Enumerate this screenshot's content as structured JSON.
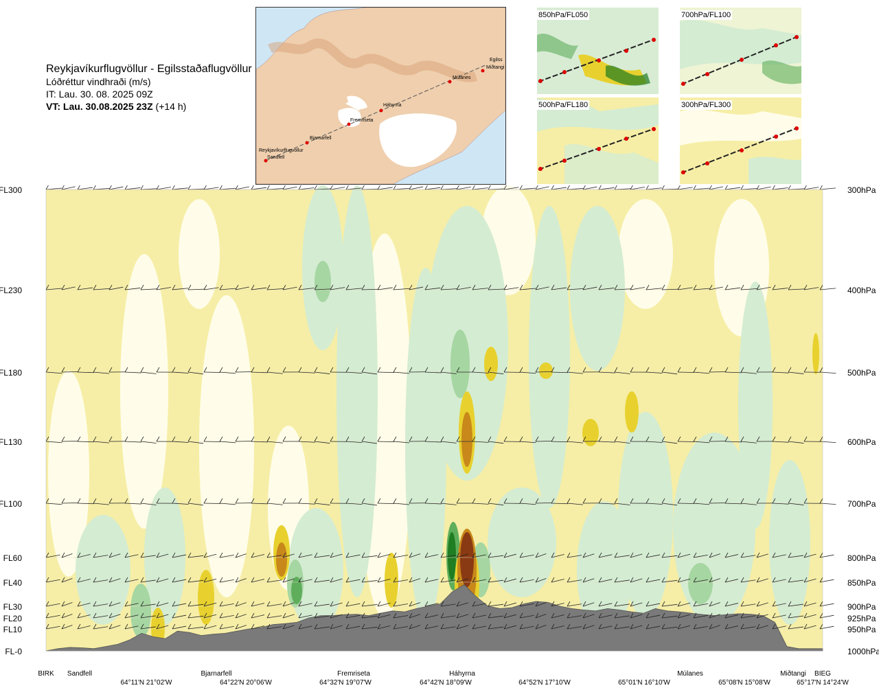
{
  "header": {
    "title": "Reykjavíkurflugvöllur - Egilsstaðaflugvöllur",
    "subtitle": "Lóðréttur vindhraði (m/s)",
    "init_time": "IT: Lau. 30. 08. 2025 09Z",
    "valid_time_bold": "VT: Lau. 30.08.2025 23Z",
    "valid_time_offset": "(+14 h)"
  },
  "route_map": {
    "waypoints": [
      "Reykjavíkurflugvöllur",
      "Sandfell",
      "Bjarnarfell",
      "Fremriseta",
      "Háhyrna",
      "Múlanes",
      "Miðtangi",
      "Egilss"
    ]
  },
  "insets": [
    {
      "label": "850hPa/FL050"
    },
    {
      "label": "700hPa/FL100"
    },
    {
      "label": "500hPa/FL180"
    },
    {
      "label": "300hPa/FL300"
    }
  ],
  "chart_data": {
    "type": "heatmap",
    "title": "Lóðréttur vindhraði (m/s)",
    "levels": [
      {
        "fl": "FL300",
        "hpa": "300hPa"
      },
      {
        "fl": "FL230",
        "hpa": "400hPa"
      },
      {
        "fl": "FL180",
        "hpa": "500hPa"
      },
      {
        "fl": "FL130",
        "hpa": "600hPa"
      },
      {
        "fl": "FL100",
        "hpa": "700hPa"
      },
      {
        "fl": "FL60",
        "hpa": "800hPa"
      },
      {
        "fl": "FL40",
        "hpa": "850hPa"
      },
      {
        "fl": "FL30",
        "hpa": "900hPa"
      },
      {
        "fl": "FL20",
        "hpa": "925hPa"
      },
      {
        "fl": "FL10",
        "hpa": "950hPa"
      },
      {
        "fl": "FL-0",
        "hpa": "1000hPa"
      }
    ],
    "places": [
      "BIRK",
      "Sandfell",
      "Bjarnarfell",
      "Fremriseta",
      "Háhyrna",
      "Múlanes",
      "Miðtangi",
      "BIEG"
    ],
    "coords": [
      "64°11'N 21°02'W",
      "64°22'N 20°06'W",
      "64°32'N 19°07'W",
      "64°42'N 18°09'W",
      "64°52'N 17°10'W",
      "65°01'N 16°10'W",
      "65°08'N 15°08'W",
      "65°17'N 14°24'W"
    ],
    "colors": {
      "down_weak": "#f6eea6",
      "down_mod": "#e8d12e",
      "down_strong": "#c8881a",
      "down_severe": "#8a3a12",
      "up_weak": "#d4ecd2",
      "up_mod": "#a6d6a2",
      "up_strong": "#5fae5c",
      "up_severe": "#1f7d22",
      "near_zero": "#fffde9",
      "terrain": "#7a7a7a"
    },
    "terrain_profile_pressure_hpa": [
      1000,
      995,
      992,
      993,
      995,
      990,
      985,
      975,
      960,
      968,
      972,
      955,
      958,
      965,
      962,
      960,
      955,
      950,
      947,
      940,
      938,
      935,
      925,
      920,
      920,
      918,
      917,
      920,
      915,
      910,
      912,
      905,
      900,
      895,
      870,
      855,
      880,
      900,
      905,
      903,
      895,
      890,
      892,
      900,
      905,
      908,
      910,
      905,
      908,
      912,
      915,
      905,
      910,
      912,
      915,
      918,
      920,
      918,
      916,
      917,
      920,
      935,
      990,
      995,
      995,
      995
    ]
  }
}
